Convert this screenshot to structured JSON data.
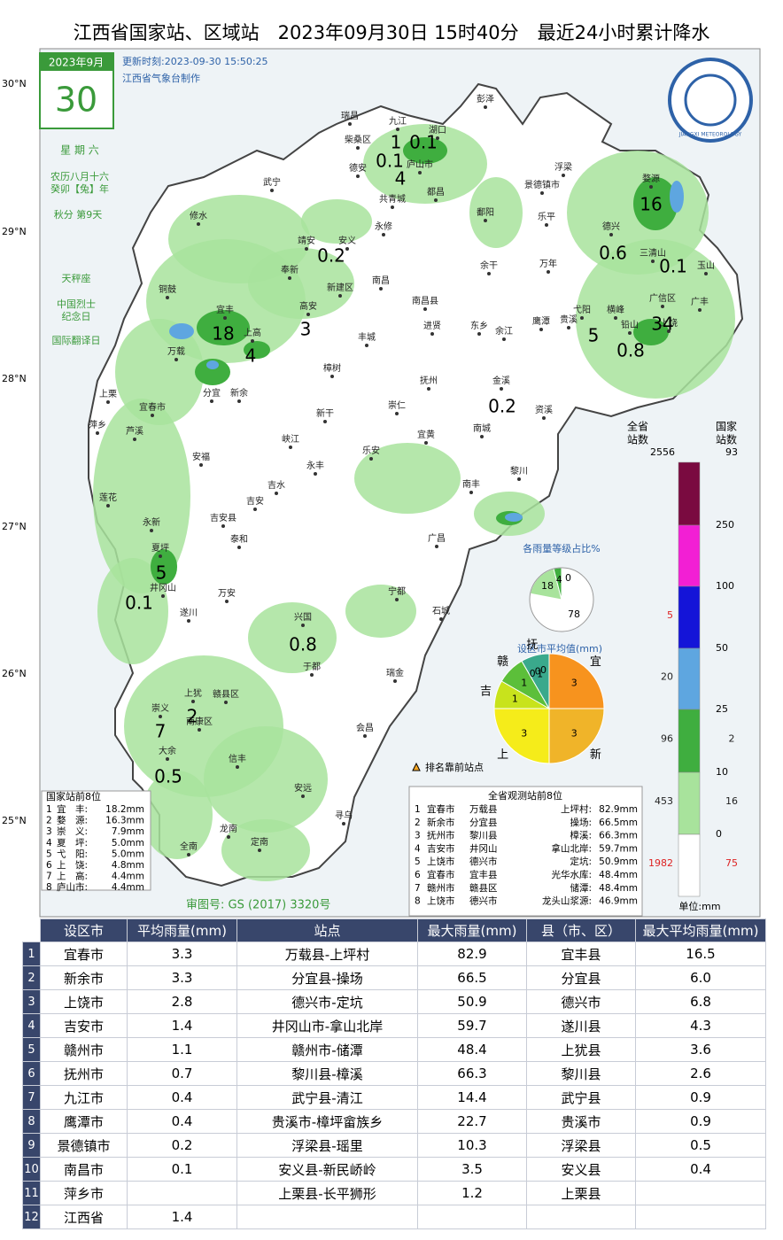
{
  "header": {
    "title": "江西省国家站、区域站　2023年09月30日 15时40分　最近24小时累计降水"
  },
  "calendar": {
    "month": "2023年9月",
    "day": "30",
    "weekday": "星 期 六",
    "lunar": [
      "农历八月十六",
      "癸卯【兔】年",
      "秋分 第9天"
    ],
    "zodiac": "天秤座",
    "festivals": [
      "中国烈士",
      "纪念日",
      "国际翻译日"
    ]
  },
  "update": "更新时刻:2023-09-30 15:50:25",
  "producer": "江西省气象台制作",
  "logo": "JIANGXI METEOROLOGY",
  "lat_labels": [
    "30°N",
    "29°N",
    "28°N",
    "27°N",
    "26°N",
    "25°N"
  ],
  "places": [
    "彭泽",
    "瑞昌",
    "九江",
    "湖口",
    "柴桑区",
    "庐山市",
    "德安",
    "浮梁",
    "景德镇市",
    "共青城",
    "都昌",
    "婺源",
    "武宁",
    "修水",
    "永修",
    "鄱阳",
    "乐平",
    "德兴",
    "三清山",
    "玉山",
    "靖安",
    "安义",
    "奉新",
    "新建区",
    "南昌",
    "万年",
    "广信区",
    "广丰",
    "铜鼓",
    "宜丰",
    "高安",
    "南昌县",
    "余干",
    "东乡",
    "余江",
    "鹰潭",
    "贵溪",
    "弋阳",
    "横峰",
    "铅山",
    "上饶",
    "上高",
    "丰城",
    "进贤",
    "万载",
    "樟树",
    "分宜",
    "新余",
    "上栗",
    "萍乡",
    "芦溪",
    "宜春市",
    "抚州",
    "金溪",
    "资溪",
    "新干",
    "崇仁",
    "峡江",
    "宜黄",
    "南城",
    "安福",
    "乐安",
    "永丰",
    "黎川",
    "吉水",
    "莲花",
    "吉安",
    "吉安县",
    "南丰",
    "永新",
    "泰和",
    "广昌",
    "井冈山",
    "夏坪",
    "万安",
    "宁都",
    "石城",
    "遂川",
    "兴国",
    "于都",
    "瑞金",
    "上犹",
    "赣县区",
    "崇义",
    "南康区",
    "会昌",
    "大余",
    "信丰",
    "安远",
    "寻乌",
    "龙南",
    "全南",
    "定南"
  ],
  "rain_labels": [
    "1",
    "0.1",
    "0.1",
    "4",
    "16",
    "0.6",
    "0.1",
    "0.2",
    "3",
    "18",
    "4",
    "5",
    "34",
    "0.8",
    "0.2",
    "5",
    "0.1",
    "0.8",
    "2",
    "7",
    "0.5"
  ],
  "legend": {
    "all_header": [
      "全省",
      "站数"
    ],
    "nat_header": [
      "国家",
      "站数"
    ],
    "all_total": "2556",
    "nat_total": "93",
    "thresholds": [
      "250",
      "100",
      "50",
      "25",
      "10",
      "0"
    ],
    "all_counts": [
      "5",
      "20",
      "96",
      "453",
      "1982"
    ],
    "nat_counts": [
      "2",
      "16",
      "75"
    ],
    "unit": "单位:mm",
    "marker_note": "排名靠前站点"
  },
  "pie_levels": {
    "title": "各雨量等级占比%",
    "slices": [
      {
        "label": "78",
        "value": 78
      },
      {
        "label": "18",
        "value": 18
      },
      {
        "label": "4",
        "value": 4
      },
      {
        "label": "0",
        "value": 0
      }
    ]
  },
  "pie_cities": {
    "title": "设区市平均值(mm)",
    "slices": [
      {
        "name": "宜",
        "label": "3",
        "value": 3
      },
      {
        "name": "新",
        "label": "3",
        "value": 3
      },
      {
        "name": "上",
        "label": "3",
        "value": 3
      },
      {
        "name": "吉",
        "label": "1",
        "value": 1
      },
      {
        "name": "赣",
        "label": "1",
        "value": 1
      },
      {
        "name": "抚",
        "label": "1",
        "value": 1
      },
      {
        "label": "0",
        "value": 0
      },
      {
        "label": "0",
        "value": 0
      },
      {
        "label": "0",
        "value": 0
      }
    ]
  },
  "national_top8": {
    "title": "国家站前8位",
    "rows": [
      [
        "1",
        "宜　丰:",
        "18.2mm"
      ],
      [
        "2",
        "婺　源:",
        "16.3mm"
      ],
      [
        "3",
        "崇　义:",
        "7.9mm"
      ],
      [
        "4",
        "夏　坪:",
        "5.0mm"
      ],
      [
        "5",
        "弋　阳:",
        "5.0mm"
      ],
      [
        "6",
        "上　饶:",
        "4.8mm"
      ],
      [
        "7",
        "上　高:",
        "4.4mm"
      ],
      [
        "8",
        "庐山市:",
        "4.4mm"
      ]
    ]
  },
  "province_top8": {
    "title": "全省观测站前8位",
    "rows": [
      [
        "1",
        "宜春市",
        "万载县",
        "上坪村:",
        "82.9mm"
      ],
      [
        "2",
        "新余市",
        "分宜县",
        "操场:",
        "66.5mm"
      ],
      [
        "3",
        "抚州市",
        "黎川县",
        "樟溪:",
        "66.3mm"
      ],
      [
        "4",
        "吉安市",
        "井冈山",
        "拿山北岸:",
        "59.7mm"
      ],
      [
        "5",
        "上饶市",
        "德兴市",
        "定坑:",
        "50.9mm"
      ],
      [
        "6",
        "宜春市",
        "宜丰县",
        "光华水库:",
        "48.4mm"
      ],
      [
        "7",
        "赣州市",
        "赣县区",
        "储潭:",
        "48.4mm"
      ],
      [
        "8",
        "上饶市",
        "德兴市",
        "龙头山浆源:",
        "46.9mm"
      ]
    ]
  },
  "review_no": "审图号: GS (2017) 3320号",
  "table": {
    "header": [
      "设区市",
      "平均雨量(mm)",
      "站点",
      "最大雨量(mm)",
      "县（市、区）",
      "最大平均雨量(mm)"
    ],
    "rows": [
      [
        "1",
        "宜春市",
        "3.3",
        "万载县-上坪村",
        "82.9",
        "宜丰县",
        "16.5"
      ],
      [
        "2",
        "新余市",
        "3.3",
        "分宜县-操场",
        "66.5",
        "分宜县",
        "6.0"
      ],
      [
        "3",
        "上饶市",
        "2.8",
        "德兴市-定坑",
        "50.9",
        "德兴市",
        "6.8"
      ],
      [
        "4",
        "吉安市",
        "1.4",
        "井冈山市-拿山北岸",
        "59.7",
        "遂川县",
        "4.3"
      ],
      [
        "5",
        "赣州市",
        "1.1",
        "赣州市-储潭",
        "48.4",
        "上犹县",
        "3.6"
      ],
      [
        "6",
        "抚州市",
        "0.7",
        "黎川县-樟溪",
        "66.3",
        "黎川县",
        "2.6"
      ],
      [
        "7",
        "九江市",
        "0.4",
        "武宁县-清江",
        "14.4",
        "武宁县",
        "0.9"
      ],
      [
        "8",
        "鹰潭市",
        "0.4",
        "贵溪市-樟坪畲族乡",
        "22.7",
        "贵溪市",
        "0.9"
      ],
      [
        "9",
        "景德镇市",
        "0.2",
        "浮梁县-瑶里",
        "10.3",
        "浮梁县",
        "0.5"
      ],
      [
        "10",
        "南昌市",
        "0.1",
        "安义县-新民峤岭",
        "3.5",
        "安义县",
        "0.4"
      ],
      [
        "11",
        "萍乡市",
        null,
        "上栗县-长平狮形",
        "1.2",
        "上栗县",
        null
      ],
      [
        "12",
        "江西省",
        "1.4",
        null,
        null,
        null,
        null
      ]
    ]
  }
}
